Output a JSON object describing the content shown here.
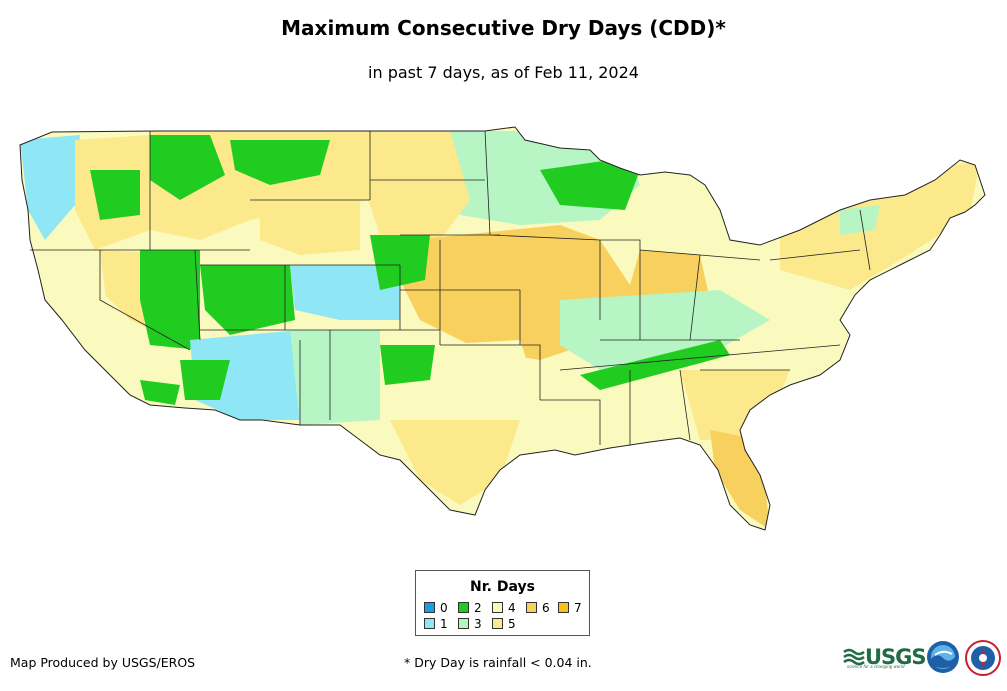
{
  "title": "Maximum Consecutive Dry Days (CDD)*",
  "subtitle": "in past 7 days, as of Feb 11, 2024",
  "legend": {
    "title": "Nr. Days",
    "items": [
      {
        "label": "0",
        "color": "#1f9ae6"
      },
      {
        "label": "1",
        "color": "#8fe6f5"
      },
      {
        "label": "2",
        "color": "#21cc21"
      },
      {
        "label": "3",
        "color": "#b7f5c4"
      },
      {
        "label": "4",
        "color": "#fafabe"
      },
      {
        "label": "5",
        "color": "#fbe98c"
      },
      {
        "label": "6",
        "color": "#f8d05e"
      },
      {
        "label": "7",
        "color": "#fbc01e"
      }
    ]
  },
  "credit": "Map Produced by USGS/EROS",
  "footnote": "* Dry Day is rainfall < 0.04 in.",
  "logos": {
    "usgs": "USGS",
    "usgs_tagline": "science for a changing world"
  },
  "map_regions": [
    {
      "name": "pacific-northwest",
      "days": 1
    },
    {
      "name": "northern-rockies",
      "days": 2
    },
    {
      "name": "great-basin",
      "days": 4
    },
    {
      "name": "california",
      "days": 4
    },
    {
      "name": "southwest",
      "days": 1
    },
    {
      "name": "colorado-plateau",
      "days": 2
    },
    {
      "name": "northern-plains",
      "days": 5
    },
    {
      "name": "upper-midwest",
      "days": 3
    },
    {
      "name": "central-plains",
      "days": 6
    },
    {
      "name": "ohio-valley",
      "days": 3
    },
    {
      "name": "southern-plains",
      "days": 4
    },
    {
      "name": "southeast",
      "days": 4
    },
    {
      "name": "florida",
      "days": 6
    },
    {
      "name": "northeast",
      "days": 5
    }
  ]
}
